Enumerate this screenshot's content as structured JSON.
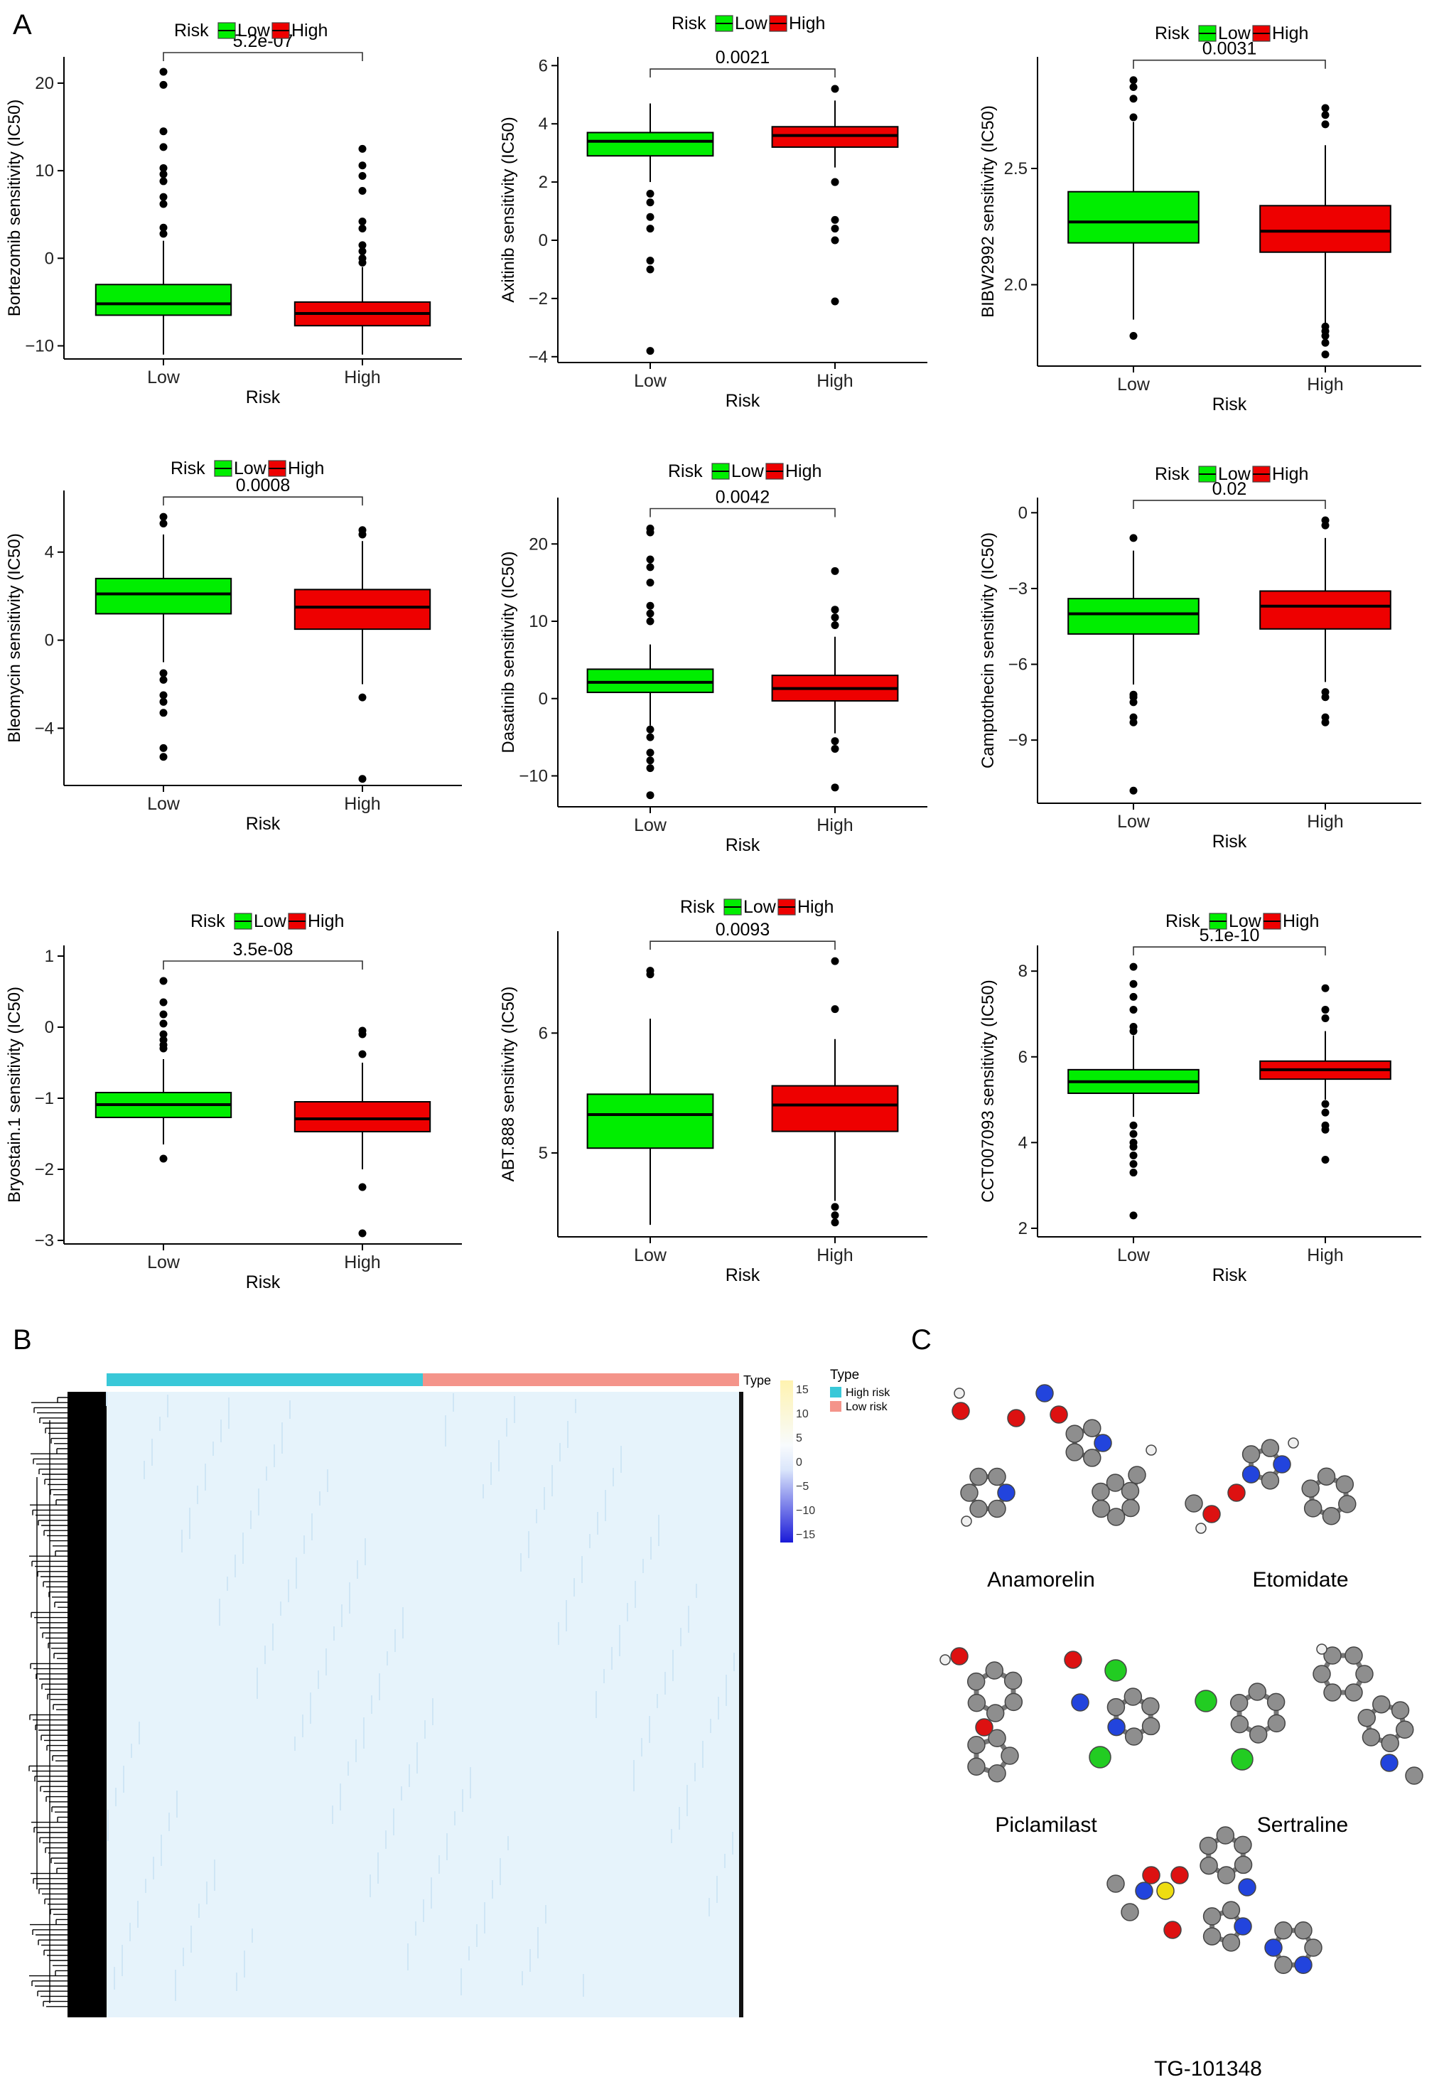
{
  "panel_labels": [
    "A",
    "B",
    "C"
  ],
  "colors": {
    "low": "#00ee00",
    "high": "#ee0000",
    "point": "#000000",
    "heat_high_risk": "#39c8d8",
    "heat_low_risk": "#f4948a"
  },
  "chart_data": [
    {
      "type": "boxplot",
      "title": "",
      "legend_title": "Risk",
      "legend_labels": [
        "Low",
        "High"
      ],
      "legend_position": "top",
      "xlabel": "Risk",
      "ylabel": "Bortezomib sensitivity (IC50)",
      "categories": [
        "Low",
        "High"
      ],
      "ylim": [
        -11.5,
        23
      ],
      "yticks": [
        -10,
        0,
        10,
        20
      ],
      "ytick_labels": [
        "−10",
        "0",
        "10",
        "20"
      ],
      "pvalue": "5.2e-07",
      "boxes": [
        {
          "q1": -6.5,
          "median": -5.2,
          "q3": -3.0,
          "whisker_low": -11.0,
          "whisker_high": 2.0
        },
        {
          "q1": -7.7,
          "median": -6.3,
          "q3": -5.0,
          "whisker_low": -11.0,
          "whisker_high": -1.0
        }
      ],
      "outliers": [
        [
          21.3,
          19.8,
          14.5,
          12.7,
          10.3,
          9.6,
          8.8,
          7.0,
          6.2,
          3.5,
          2.8
        ],
        [
          12.5,
          10.6,
          9.4,
          7.7,
          4.2,
          3.4,
          1.5,
          0.8,
          0.0,
          -0.5
        ]
      ]
    },
    {
      "type": "boxplot",
      "title": "",
      "legend_title": "Risk",
      "legend_labels": [
        "Low",
        "High"
      ],
      "legend_position": "top",
      "xlabel": "Risk",
      "ylabel": "Axitinib sensitivity (IC50)",
      "categories": [
        "Low",
        "High"
      ],
      "ylim": [
        -4.2,
        6.3
      ],
      "yticks": [
        -4,
        -2,
        0,
        2,
        4,
        6
      ],
      "ytick_labels": [
        "−4",
        "−2",
        "0",
        "2",
        "4",
        "6"
      ],
      "pvalue": "0.0021",
      "boxes": [
        {
          "q1": 2.9,
          "median": 3.4,
          "q3": 3.7,
          "whisker_low": 2.0,
          "whisker_high": 4.7
        },
        {
          "q1": 3.2,
          "median": 3.6,
          "q3": 3.9,
          "whisker_low": 2.5,
          "whisker_high": 4.8
        }
      ],
      "outliers": [
        [
          1.6,
          1.3,
          0.8,
          0.4,
          -0.7,
          -1.0,
          -3.8
        ],
        [
          5.2,
          2.0,
          2.0,
          0.7,
          0.4,
          0.0,
          -2.1
        ]
      ]
    },
    {
      "type": "boxplot",
      "title": "",
      "legend_title": "Risk",
      "legend_labels": [
        "Low",
        "High"
      ],
      "legend_position": "top",
      "xlabel": "Risk",
      "ylabel": "BIBW2992 sensitivity (IC50)",
      "categories": [
        "Low",
        "High"
      ],
      "ylim": [
        1.65,
        2.98
      ],
      "yticks": [
        2.0,
        2.5
      ],
      "ytick_labels": [
        "2.0",
        "2.5"
      ],
      "pvalue": "0.0031",
      "boxes": [
        {
          "q1": 2.18,
          "median": 2.27,
          "q3": 2.4,
          "whisker_low": 1.85,
          "whisker_high": 2.7
        },
        {
          "q1": 2.14,
          "median": 2.23,
          "q3": 2.34,
          "whisker_low": 1.83,
          "whisker_high": 2.6
        }
      ],
      "outliers": [
        [
          2.88,
          2.85,
          2.8,
          2.72,
          1.78
        ],
        [
          2.76,
          2.73,
          2.69,
          1.82,
          1.8,
          1.78,
          1.75,
          1.7
        ]
      ]
    },
    {
      "type": "boxplot",
      "title": "",
      "legend_title": "Risk",
      "legend_labels": [
        "Low",
        "High"
      ],
      "legend_position": "top",
      "xlabel": "Risk",
      "ylabel": "Bleomycin sensitivity (IC50)",
      "categories": [
        "Low",
        "High"
      ],
      "ylim": [
        -6.6,
        6.8
      ],
      "yticks": [
        -4,
        0,
        4
      ],
      "ytick_labels": [
        "−4",
        "0",
        "4"
      ],
      "pvalue": "0.0008",
      "boxes": [
        {
          "q1": 1.2,
          "median": 2.1,
          "q3": 2.8,
          "whisker_low": -1.0,
          "whisker_high": 4.8
        },
        {
          "q1": 0.5,
          "median": 1.5,
          "q3": 2.3,
          "whisker_low": -2.0,
          "whisker_high": 4.5
        }
      ],
      "outliers": [
        [
          5.6,
          5.3,
          -1.5,
          -1.8,
          -2.5,
          -2.8,
          -3.3,
          -4.9,
          -5.3
        ],
        [
          5.0,
          4.8,
          -2.6,
          -6.3
        ]
      ]
    },
    {
      "type": "boxplot",
      "title": "",
      "legend_title": "Risk",
      "legend_labels": [
        "Low",
        "High"
      ],
      "legend_position": "top",
      "xlabel": "Risk",
      "ylabel": "Dasatinib sensitivity (IC50)",
      "categories": [
        "Low",
        "High"
      ],
      "ylim": [
        -14,
        26
      ],
      "yticks": [
        -10,
        0,
        10,
        20
      ],
      "ytick_labels": [
        "−10",
        "0",
        "10",
        "20"
      ],
      "pvalue": "0.0042",
      "boxes": [
        {
          "q1": 0.8,
          "median": 2.1,
          "q3": 3.8,
          "whisker_low": -3.5,
          "whisker_high": 7.0
        },
        {
          "q1": -0.3,
          "median": 1.3,
          "q3": 3.0,
          "whisker_low": -4.5,
          "whisker_high": 8.0
        }
      ],
      "outliers": [
        [
          22.0,
          21.5,
          18.0,
          17.0,
          15.0,
          12.0,
          11.0,
          10.0,
          -4.0,
          -5.0,
          -7.0,
          -8.0,
          -9.0,
          -12.5
        ],
        [
          16.5,
          11.5,
          10.5,
          9.5,
          -5.5,
          -6.5,
          -11.5
        ]
      ]
    },
    {
      "type": "boxplot",
      "title": "",
      "legend_title": "Risk",
      "legend_labels": [
        "Low",
        "High"
      ],
      "legend_position": "top",
      "xlabel": "Risk",
      "ylabel": "Camptothecin sensitivity (IC50)",
      "categories": [
        "Low",
        "High"
      ],
      "ylim": [
        -11.5,
        0.6
      ],
      "yticks": [
        -9,
        -6,
        -3,
        0
      ],
      "ytick_labels": [
        "−9",
        "−6",
        "−3",
        "0"
      ],
      "pvalue": "0.02",
      "boxes": [
        {
          "q1": -4.8,
          "median": -4.0,
          "q3": -3.4,
          "whisker_low": -6.8,
          "whisker_high": -1.5
        },
        {
          "q1": -4.6,
          "median": -3.7,
          "q3": -3.1,
          "whisker_low": -6.7,
          "whisker_high": -1.0
        }
      ],
      "outliers": [
        [
          -1.0,
          -7.2,
          -7.3,
          -7.5,
          -8.1,
          -8.3,
          -11.0
        ],
        [
          -0.3,
          -0.5,
          -7.1,
          -7.3,
          -8.1,
          -8.3
        ]
      ]
    },
    {
      "type": "boxplot",
      "title": "",
      "legend_title": "Risk",
      "legend_labels": [
        "Low",
        "High"
      ],
      "legend_position": "top",
      "xlabel": "Risk",
      "ylabel": "Bryostain.1 sensitivity (IC50)",
      "categories": [
        "Low",
        "High"
      ],
      "ylim": [
        -3.05,
        1.15
      ],
      "yticks": [
        -3,
        -2,
        -1,
        0,
        1
      ],
      "ytick_labels": [
        "−3",
        "−2",
        "−1",
        "0",
        "1"
      ],
      "pvalue": "3.5e-08",
      "boxes": [
        {
          "q1": -1.27,
          "median": -1.09,
          "q3": -0.92,
          "whisker_low": -1.65,
          "whisker_high": -0.45
        },
        {
          "q1": -1.47,
          "median": -1.29,
          "q3": -1.05,
          "whisker_low": -2.0,
          "whisker_high": -0.5
        }
      ],
      "outliers": [
        [
          0.65,
          0.35,
          0.18,
          0.05,
          -0.1,
          -0.18,
          -0.25,
          -0.3,
          -1.85
        ],
        [
          -0.05,
          -0.1,
          -0.38,
          -2.25,
          -2.9
        ]
      ]
    },
    {
      "type": "boxplot",
      "title": "",
      "legend_title": "Risk",
      "legend_labels": [
        "Low",
        "High"
      ],
      "legend_position": "top",
      "xlabel": "Risk",
      "ylabel": "ABT.888 sensitivity (IC50)",
      "categories": [
        "Low",
        "High"
      ],
      "ylim": [
        4.3,
        6.85
      ],
      "yticks": [
        5,
        6
      ],
      "ytick_labels": [
        "5",
        "6"
      ],
      "pvalue": "0.0093",
      "boxes": [
        {
          "q1": 5.04,
          "median": 5.32,
          "q3": 5.49,
          "whisker_low": 4.4,
          "whisker_high": 6.12
        },
        {
          "q1": 5.18,
          "median": 5.4,
          "q3": 5.56,
          "whisker_low": 4.6,
          "whisker_high": 5.95
        }
      ],
      "outliers": [
        [
          6.52,
          6.49
        ],
        [
          6.6,
          6.2,
          4.55,
          4.48,
          4.42
        ]
      ]
    },
    {
      "type": "boxplot",
      "title": "",
      "legend_title": "Risk",
      "legend_labels": [
        "Low",
        "High"
      ],
      "legend_position": "top",
      "xlabel": "Risk",
      "ylabel": "CCT007093 sensitivity (IC50)",
      "categories": [
        "Low",
        "High"
      ],
      "ylim": [
        1.8,
        8.6
      ],
      "yticks": [
        2,
        4,
        6,
        8
      ],
      "ytick_labels": [
        "2",
        "4",
        "6",
        "8"
      ],
      "pvalue": "5.1e-10",
      "boxes": [
        {
          "q1": 5.15,
          "median": 5.42,
          "q3": 5.7,
          "whisker_low": 4.6,
          "whisker_high": 6.5
        },
        {
          "q1": 5.48,
          "median": 5.7,
          "q3": 5.9,
          "whisker_low": 5.0,
          "whisker_high": 6.6
        }
      ],
      "outliers": [
        [
          8.1,
          7.7,
          7.4,
          7.1,
          6.7,
          6.6,
          4.4,
          4.2,
          4.0,
          3.9,
          3.7,
          3.5,
          3.3,
          2.3
        ],
        [
          7.6,
          7.1,
          6.9,
          4.9,
          4.7,
          4.4,
          4.3,
          3.6
        ]
      ]
    },
    {
      "type": "heatmap",
      "title": "",
      "annotation_label": "Type",
      "legend_title": "Type",
      "legend_entries": [
        "High risk",
        "Low risk"
      ],
      "color_scale_ticks": [
        15,
        10,
        5,
        0,
        -5,
        -10,
        -15
      ],
      "color_scale_labels": [
        "15",
        "10",
        "5",
        "0",
        "−5",
        "−10",
        "−15"
      ]
    }
  ],
  "panel_c": {
    "molecules": [
      "Anamorelin",
      "Etomidate",
      "Piclamilast",
      "Sertraline",
      "TG-101348"
    ]
  }
}
